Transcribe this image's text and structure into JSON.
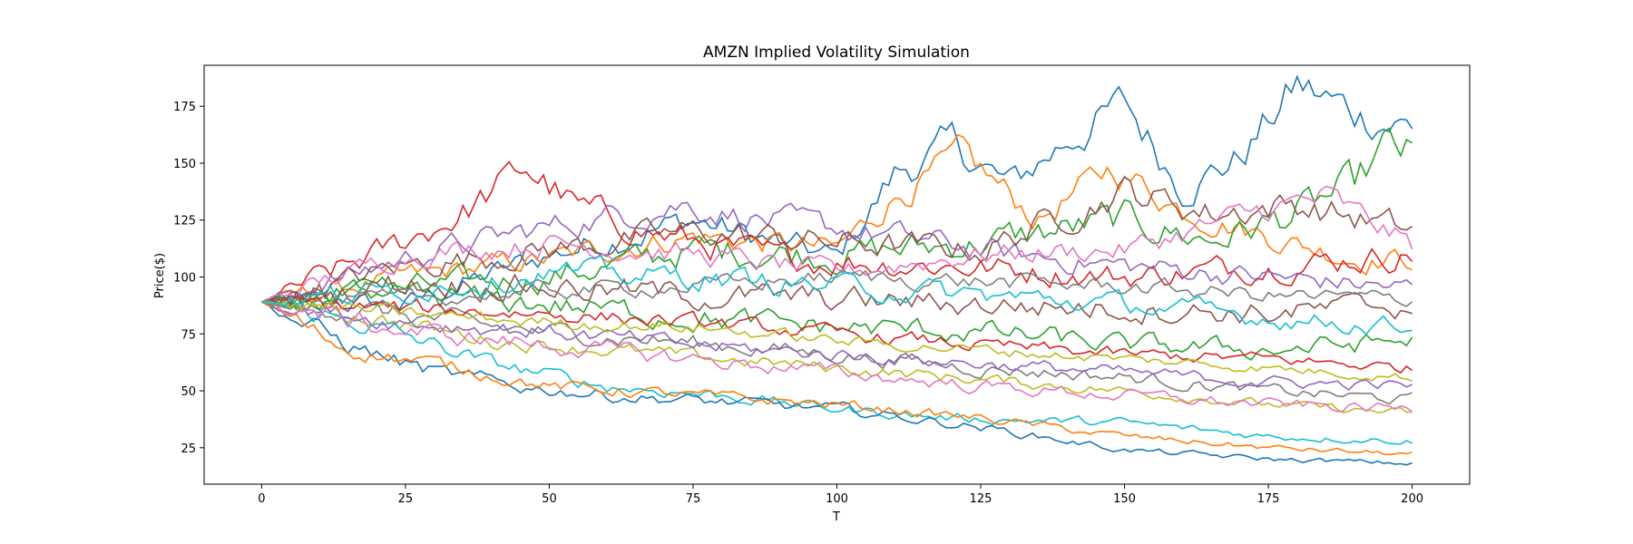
{
  "chart_data": {
    "type": "line",
    "title": "AMZN Implied Volatility Simulation",
    "xlabel": "T",
    "ylabel": "Price($)",
    "xlim": [
      -10,
      210
    ],
    "ylim": [
      9,
      193
    ],
    "xticks": [
      0,
      25,
      50,
      75,
      100,
      125,
      150,
      175,
      200
    ],
    "yticks": [
      25,
      50,
      75,
      100,
      125,
      150,
      175
    ],
    "xtick_labels": [
      "0",
      "25",
      "50",
      "75",
      "100",
      "125",
      "150",
      "175",
      "200"
    ],
    "ytick_labels": [
      "25",
      "50",
      "75",
      "100",
      "125",
      "150",
      "175"
    ],
    "grid": false,
    "legend": "none",
    "start_value": 89,
    "num_series": 100,
    "colors": [
      "#1f77b4",
      "#ff7f0e",
      "#2ca02c",
      "#d62728",
      "#9467bd",
      "#8c564b",
      "#e377c2",
      "#7f7f7f",
      "#bcbd22",
      "#17becf"
    ],
    "series": [
      {
        "values": [
          [
            0,
            89
          ],
          [
            25,
            88
          ],
          [
            50,
            110
          ],
          [
            75,
            125
          ],
          [
            100,
            108
          ],
          [
            110,
            145
          ],
          [
            120,
            158
          ],
          [
            130,
            140
          ],
          [
            140,
            160
          ],
          [
            150,
            176
          ],
          [
            160,
            140
          ],
          [
            170,
            152
          ],
          [
            180,
            184
          ],
          [
            190,
            172
          ],
          [
            200,
            166
          ]
        ]
      },
      {
        "values": [
          [
            0,
            89
          ],
          [
            25,
            100
          ],
          [
            50,
            108
          ],
          [
            75,
            118
          ],
          [
            100,
            112
          ],
          [
            110,
            135
          ],
          [
            122,
            153
          ],
          [
            135,
            125
          ],
          [
            148,
            148
          ],
          [
            160,
            130
          ],
          [
            175,
            118
          ],
          [
            190,
            108
          ],
          [
            200,
            108
          ]
        ]
      },
      {
        "values": [
          [
            0,
            89
          ],
          [
            25,
            95
          ],
          [
            50,
            100
          ],
          [
            75,
            112
          ],
          [
            100,
            110
          ],
          [
            125,
            115
          ],
          [
            150,
            125
          ],
          [
            165,
            116
          ],
          [
            180,
            128
          ],
          [
            190,
            140
          ],
          [
            196,
            157
          ],
          [
            200,
            153
          ]
        ]
      },
      {
        "values": [
          [
            0,
            89
          ],
          [
            20,
            110
          ],
          [
            35,
            128
          ],
          [
            46,
            148
          ],
          [
            55,
            130
          ],
          [
            70,
            118
          ],
          [
            90,
            108
          ],
          [
            120,
            105
          ],
          [
            150,
            100
          ],
          [
            175,
            105
          ],
          [
            200,
            110
          ]
        ]
      },
      {
        "values": [
          [
            0,
            89
          ],
          [
            30,
            112
          ],
          [
            50,
            122
          ],
          [
            73,
            132
          ],
          [
            90,
            124
          ],
          [
            110,
            118
          ],
          [
            130,
            110
          ],
          [
            150,
            105
          ],
          [
            175,
            100
          ],
          [
            200,
            95
          ]
        ]
      },
      {
        "values": [
          [
            0,
            89
          ],
          [
            25,
            105
          ],
          [
            50,
            112
          ],
          [
            75,
            120
          ],
          [
            100,
            115
          ],
          [
            125,
            112
          ],
          [
            150,
            138
          ],
          [
            165,
            128
          ],
          [
            180,
            132
          ],
          [
            200,
            120
          ]
        ]
      },
      {
        "values": [
          [
            0,
            89
          ],
          [
            25,
            110
          ],
          [
            50,
            115
          ],
          [
            75,
            110
          ],
          [
            100,
            102
          ],
          [
            125,
            110
          ],
          [
            150,
            112
          ],
          [
            175,
            130
          ],
          [
            185,
            135
          ],
          [
            200,
            114
          ]
        ]
      },
      {
        "values": [
          [
            0,
            89
          ],
          [
            20,
            85
          ],
          [
            40,
            78
          ],
          [
            60,
            74
          ],
          [
            80,
            70
          ],
          [
            100,
            66
          ],
          [
            125,
            60
          ],
          [
            150,
            56
          ],
          [
            175,
            50
          ],
          [
            200,
            46
          ]
        ]
      },
      {
        "values": [
          [
            0,
            89
          ],
          [
            20,
            82
          ],
          [
            40,
            72
          ],
          [
            60,
            68
          ],
          [
            80,
            64
          ],
          [
            100,
            60
          ],
          [
            125,
            55
          ],
          [
            150,
            50
          ],
          [
            175,
            44
          ],
          [
            200,
            40
          ]
        ]
      },
      {
        "values": [
          [
            0,
            89
          ],
          [
            20,
            78
          ],
          [
            40,
            62
          ],
          [
            60,
            52
          ],
          [
            80,
            48
          ],
          [
            100,
            42
          ],
          [
            120,
            38
          ],
          [
            150,
            36
          ],
          [
            175,
            30
          ],
          [
            200,
            28
          ]
        ]
      },
      {
        "values": [
          [
            0,
            89
          ],
          [
            15,
            70
          ],
          [
            30,
            58
          ],
          [
            45,
            52
          ],
          [
            60,
            48
          ],
          [
            80,
            45
          ],
          [
            100,
            42
          ],
          [
            125,
            34
          ],
          [
            150,
            24
          ],
          [
            175,
            20
          ],
          [
            200,
            18
          ]
        ]
      },
      {
        "values": [
          [
            0,
            89
          ],
          [
            15,
            68
          ],
          [
            30,
            62
          ],
          [
            50,
            52
          ],
          [
            75,
            48
          ],
          [
            100,
            44
          ],
          [
            125,
            38
          ],
          [
            150,
            30
          ],
          [
            175,
            25
          ],
          [
            200,
            22
          ]
        ]
      },
      {
        "values": [
          [
            0,
            89
          ],
          [
            25,
            92
          ],
          [
            50,
            88
          ],
          [
            75,
            82
          ],
          [
            100,
            78
          ],
          [
            125,
            76
          ],
          [
            150,
            70
          ],
          [
            175,
            68
          ],
          [
            200,
            72
          ]
        ]
      },
      {
        "values": [
          [
            0,
            89
          ],
          [
            25,
            86
          ],
          [
            50,
            84
          ],
          [
            75,
            80
          ],
          [
            100,
            75
          ],
          [
            125,
            70
          ],
          [
            150,
            66
          ],
          [
            175,
            64
          ],
          [
            200,
            60
          ]
        ]
      },
      {
        "values": [
          [
            0,
            89
          ],
          [
            25,
            80
          ],
          [
            50,
            76
          ],
          [
            75,
            70
          ],
          [
            100,
            66
          ],
          [
            125,
            62
          ],
          [
            150,
            58
          ],
          [
            175,
            54
          ],
          [
            200,
            52
          ]
        ]
      },
      {
        "values": [
          [
            0,
            89
          ],
          [
            25,
            98
          ],
          [
            50,
            96
          ],
          [
            75,
            92
          ],
          [
            100,
            90
          ],
          [
            125,
            88
          ],
          [
            150,
            86
          ],
          [
            175,
            84
          ],
          [
            200,
            88
          ]
        ]
      },
      {
        "values": [
          [
            0,
            89
          ],
          [
            25,
            76
          ],
          [
            50,
            70
          ],
          [
            75,
            64
          ],
          [
            100,
            58
          ],
          [
            125,
            52
          ],
          [
            150,
            48
          ],
          [
            175,
            44
          ],
          [
            200,
            42
          ]
        ]
      },
      {
        "values": [
          [
            0,
            89
          ],
          [
            25,
            90
          ],
          [
            50,
            94
          ],
          [
            75,
            96
          ],
          [
            100,
            100
          ],
          [
            125,
            98
          ],
          [
            150,
            96
          ],
          [
            175,
            92
          ],
          [
            200,
            90
          ]
        ]
      },
      {
        "values": [
          [
            0,
            89
          ],
          [
            25,
            84
          ],
          [
            50,
            80
          ],
          [
            75,
            78
          ],
          [
            100,
            72
          ],
          [
            125,
            68
          ],
          [
            150,
            64
          ],
          [
            175,
            60
          ],
          [
            200,
            56
          ]
        ]
      },
      {
        "values": [
          [
            0,
            89
          ],
          [
            25,
            94
          ],
          [
            50,
            102
          ],
          [
            75,
            100
          ],
          [
            100,
            96
          ],
          [
            125,
            92
          ],
          [
            150,
            88
          ],
          [
            175,
            82
          ],
          [
            200,
            78
          ]
        ]
      }
    ]
  }
}
